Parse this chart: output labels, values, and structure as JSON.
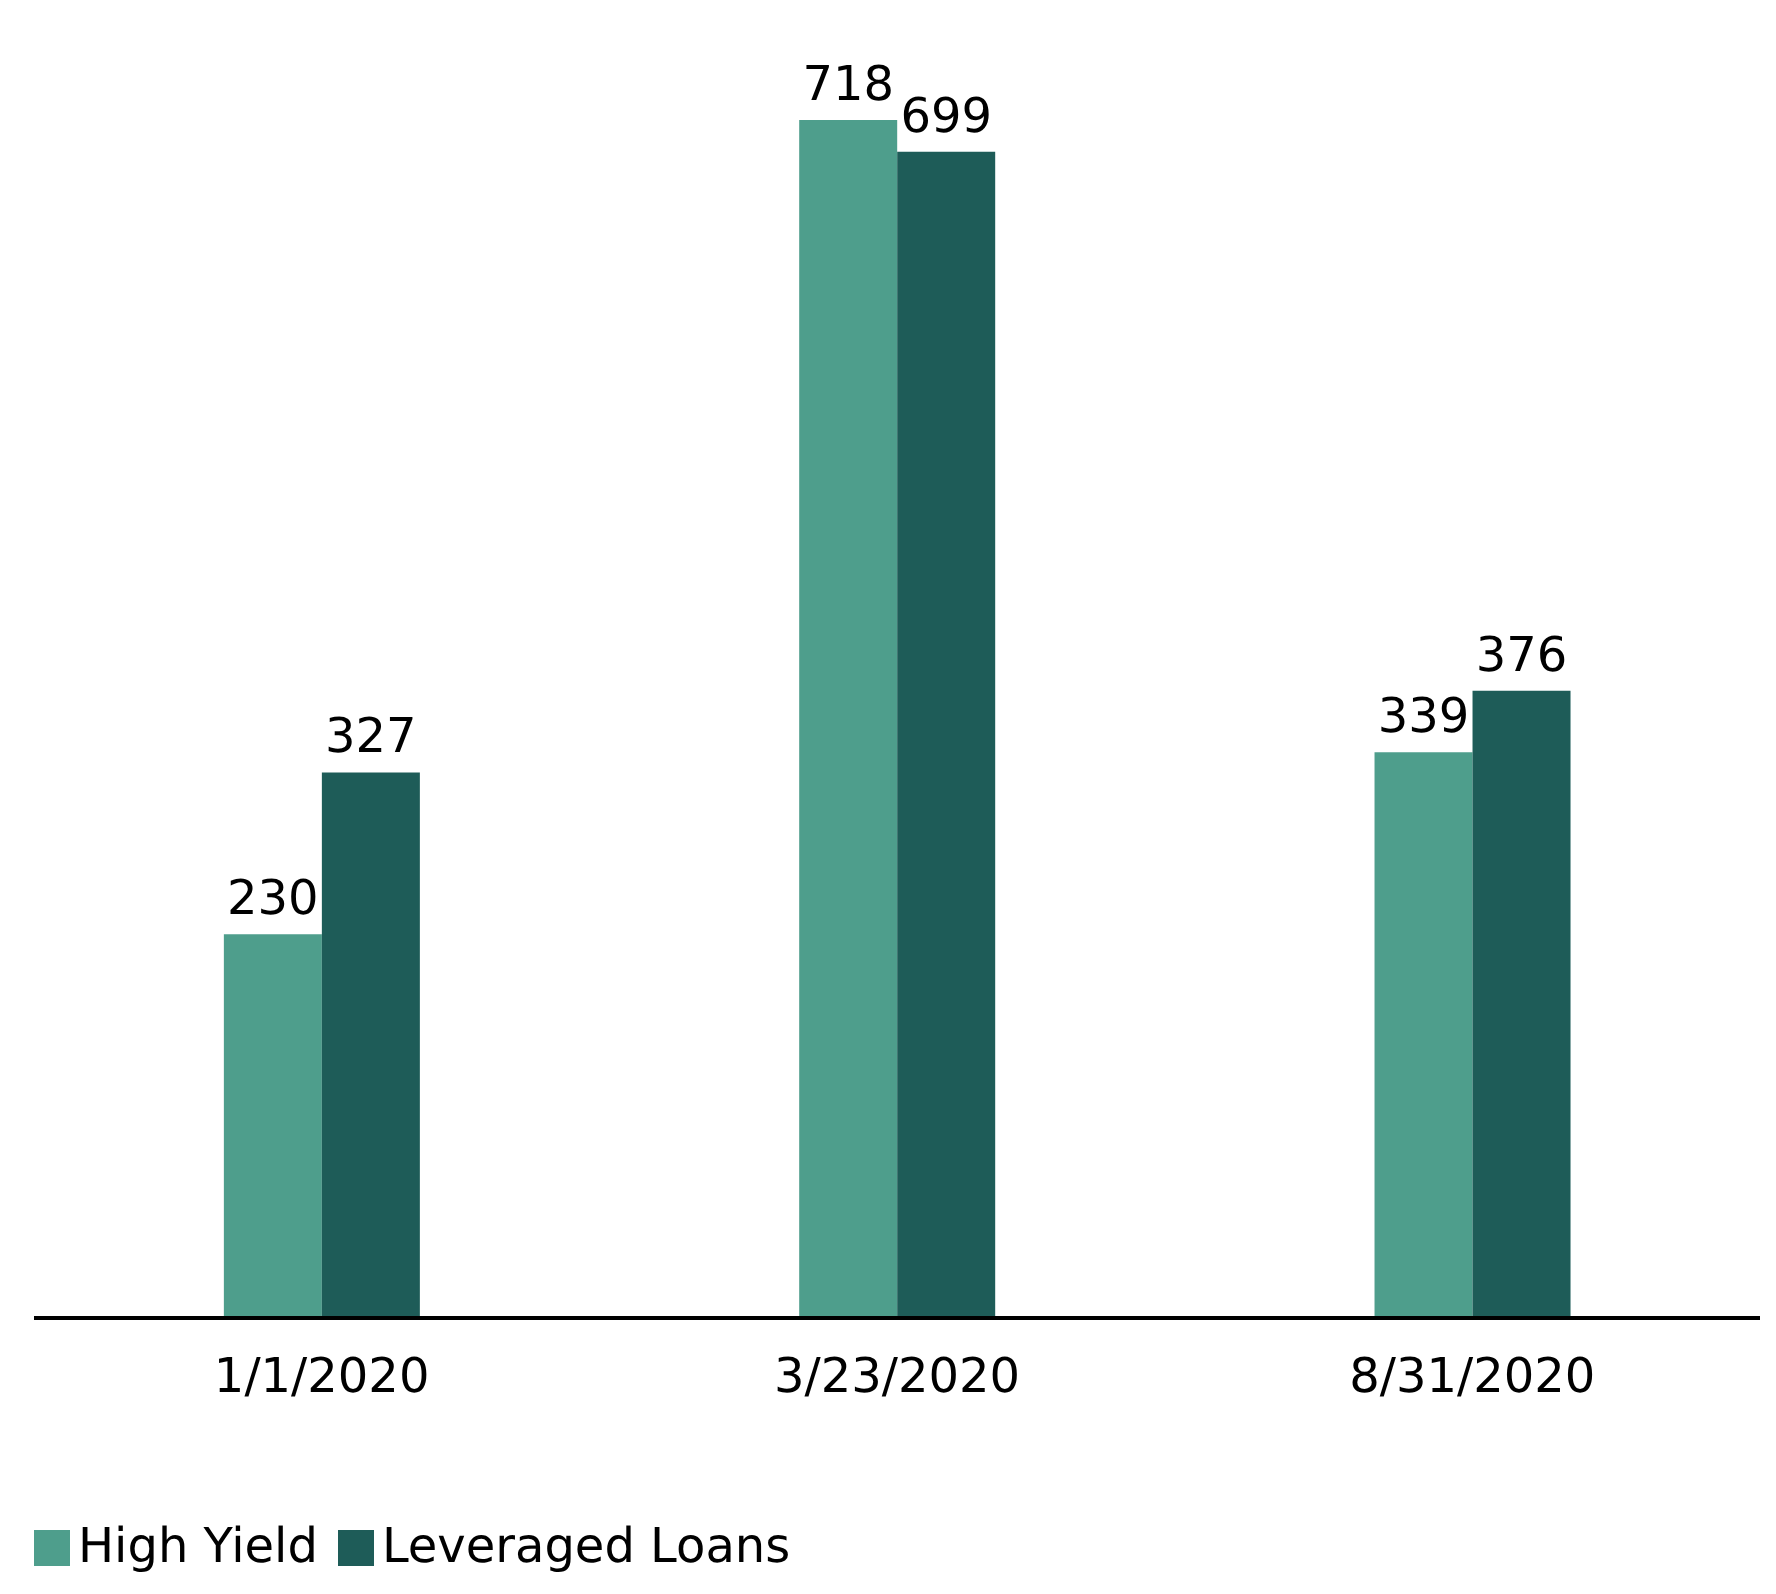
{
  "chart_data": {
    "type": "bar",
    "categories": [
      "1/1/2020",
      "3/23/2020",
      "8/31/2020"
    ],
    "series": [
      {
        "name": "High Yield",
        "color": "#4e9e8c",
        "values": [
          230,
          718,
          339
        ]
      },
      {
        "name": "Leveraged Loans",
        "color": "#1e5c58",
        "values": [
          327,
          699,
          376
        ]
      }
    ],
    "data_labels": true,
    "legend": "bottom left",
    "grid": false
  }
}
